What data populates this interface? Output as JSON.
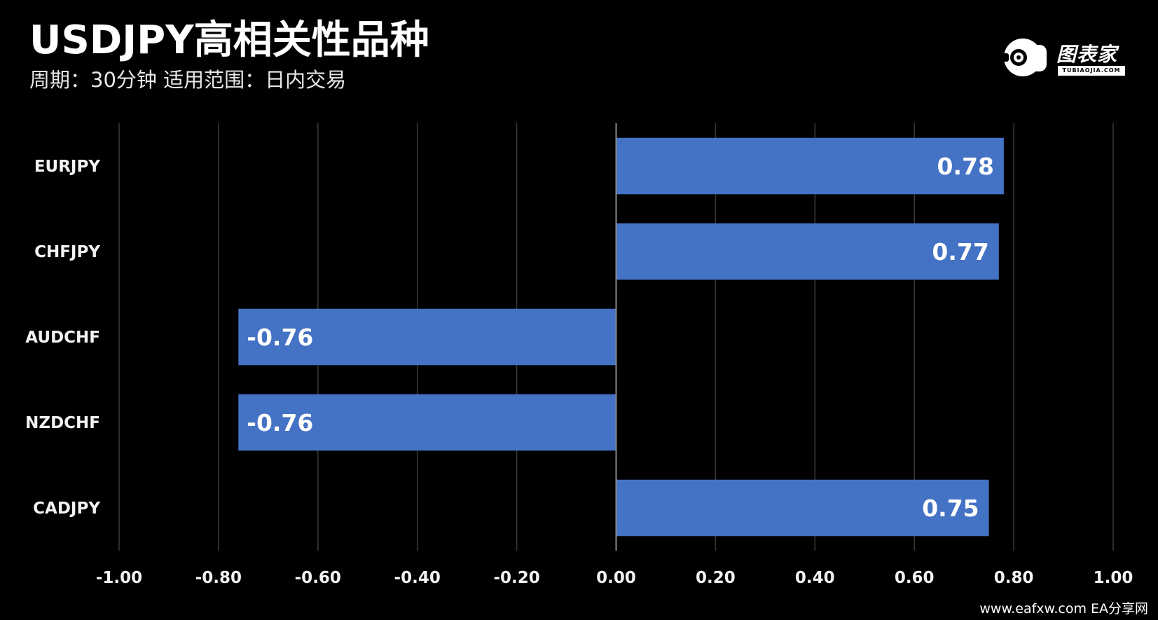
{
  "header": {
    "title": "USDJPY高相关性品种",
    "subtitle": "周期：30分钟  适用范围：日内交易"
  },
  "logo": {
    "text": "图表家",
    "subtext": "TUBIAOJIA.COM"
  },
  "watermark": "www.eafxw.com   EA分享网",
  "chart_data": {
    "type": "bar",
    "orientation": "horizontal",
    "categories": [
      "EURJPY",
      "CHFJPY",
      "AUDCHF",
      "NZDCHF",
      "CADJPY"
    ],
    "values": [
      0.78,
      0.77,
      -0.76,
      -0.76,
      0.75
    ],
    "data_labels": [
      "0.78",
      "0.77",
      "-0.76",
      "-0.76",
      "0.75"
    ],
    "xlim": [
      -1.0,
      1.0
    ],
    "x_ticks": [
      "-1.00",
      "-0.80",
      "-0.60",
      "-0.40",
      "-0.20",
      "0.00",
      "0.20",
      "0.40",
      "0.60",
      "0.80",
      "1.00"
    ],
    "tick_values": [
      -1.0,
      -0.8,
      -0.6,
      -0.4,
      -0.2,
      0.0,
      0.2,
      0.4,
      0.6,
      0.8,
      1.0
    ],
    "grid": true,
    "bar_color": "#4472c4",
    "background_color": "#000000",
    "grid_color": "#3a3a3a"
  }
}
